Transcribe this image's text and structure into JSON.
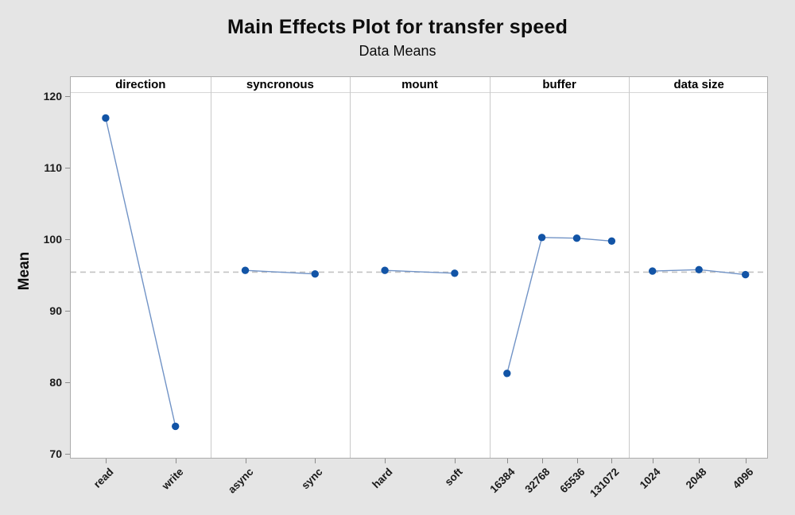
{
  "chart_data": {
    "type": "line",
    "title": "Main Effects Plot for transfer speed",
    "subtitle": "Data Means",
    "ylabel": "Mean",
    "ylim": [
      70,
      120
    ],
    "yticks": [
      70,
      80,
      90,
      100,
      110,
      120
    ],
    "grand_mean": 95.45,
    "reference_line": "dashed horizontal gray line at grand mean",
    "legend_position": "none",
    "grid": "off",
    "panels": [
      {
        "factor": "direction",
        "levels": [
          "read",
          "write"
        ],
        "means": [
          117.0,
          73.9
        ]
      },
      {
        "factor": "syncronous",
        "levels": [
          "async",
          "sync"
        ],
        "means": [
          95.7,
          95.2
        ]
      },
      {
        "factor": "mount",
        "levels": [
          "hard",
          "soft"
        ],
        "means": [
          95.7,
          95.3
        ]
      },
      {
        "factor": "buffer",
        "levels": [
          "16384",
          "32768",
          "65536",
          "131072"
        ],
        "means": [
          81.3,
          100.3,
          100.2,
          99.8
        ]
      },
      {
        "factor": "data size",
        "levels": [
          "1024",
          "2048",
          "4096"
        ],
        "means": [
          95.6,
          95.8,
          95.1
        ]
      }
    ],
    "colors": {
      "marker": "#1254a6",
      "line": "#7193c6",
      "reference": "#c2c2c2",
      "frame_border": "#ababab",
      "panel_separator": "#c9c9c9",
      "background": "#e5e5e5",
      "plot_background": "#ffffff"
    }
  }
}
